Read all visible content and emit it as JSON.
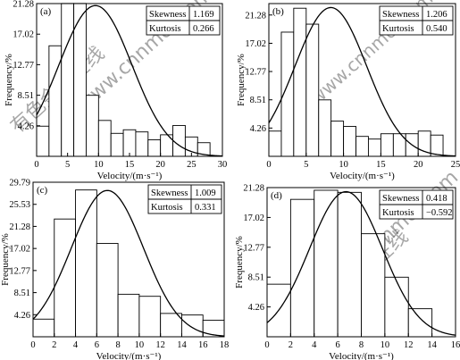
{
  "watermark": {
    "cn": "有色金属在线",
    "url": "www.cnnmol.com",
    "color": "#c8c8c8"
  },
  "chart_data": [
    {
      "type": "bar",
      "panel_label": "(a)",
      "xlabel": "Velocity/(m·s⁻¹)",
      "ylabel": "Frequency/%",
      "xlim": [
        0,
        30
      ],
      "ylim": [
        0,
        21.28
      ],
      "xticks": [
        0,
        5,
        10,
        15,
        20,
        25,
        30
      ],
      "yticks": [
        "4.26",
        "8.51",
        "12.77",
        "17.02",
        "21.28"
      ],
      "bin_edges": [
        0,
        2,
        4,
        6,
        8,
        10,
        12,
        14,
        16,
        18,
        20,
        22,
        24,
        26,
        28
      ],
      "values": [
        4.2,
        15.4,
        21.3,
        21.3,
        8.5,
        5.0,
        3.2,
        3.7,
        3.4,
        2.3,
        3.0,
        4.3,
        2.7,
        1.9
      ],
      "curve": {
        "mean": 9.5,
        "sd": 5.9,
        "peak": 21.0
      },
      "stats": [
        {
          "name": "Skewness",
          "value": "1.169"
        },
        {
          "name": "Kurtosis",
          "value": "0.266"
        }
      ]
    },
    {
      "type": "bar",
      "panel_label": "(b)",
      "xlabel": "Velocity/(m·s⁻¹)",
      "ylabel": "Frequency/%",
      "xlim": [
        0,
        25
      ],
      "ylim": [
        0,
        23.0
      ],
      "xticks": [
        0,
        5,
        10,
        15,
        20,
        25
      ],
      "yticks": [
        "4.26",
        "8.51",
        "12.77",
        "17.02",
        "21.28"
      ],
      "bin_edges": [
        0,
        1.67,
        3.33,
        5,
        6.67,
        8.33,
        10,
        11.67,
        13.33,
        15,
        16.67,
        18.33,
        20,
        21.67,
        23.33
      ],
      "values": [
        3.8,
        18.7,
        22.3,
        19.9,
        8.5,
        5.3,
        4.5,
        3.0,
        2.6,
        3.4,
        3.4,
        3.4,
        3.8,
        3.2
      ],
      "curve": {
        "mean": 8.3,
        "sd": 4.8,
        "peak": 22.4
      },
      "stats": [
        {
          "name": "Skewness",
          "value": "1.206"
        },
        {
          "name": "Kurtosis",
          "value": "0.540"
        }
      ]
    },
    {
      "type": "bar",
      "panel_label": "(c)",
      "xlabel": "Velocity/(m·s⁻¹)",
      "ylabel": "Frequency/%",
      "xlim": [
        0,
        18
      ],
      "ylim": [
        0,
        29.79
      ],
      "xticks": [
        0,
        2,
        4,
        6,
        8,
        10,
        12,
        14,
        16,
        18
      ],
      "yticks": [
        "4.26",
        "8.51",
        "12.77",
        "17.02",
        "21.28",
        "25.53",
        "29.79"
      ],
      "bin_edges": [
        0,
        2,
        4,
        6,
        8,
        10,
        12,
        14,
        16,
        18
      ],
      "values": [
        3.4,
        22.7,
        28.3,
        18.0,
        8.2,
        7.8,
        4.5,
        4.2,
        3.2
      ],
      "curve": {
        "mean": 7.0,
        "sd": 3.4,
        "peak": 28.2
      },
      "stats": [
        {
          "name": "Skewness",
          "value": "1.009"
        },
        {
          "name": "Kurtosis",
          "value": "0.331"
        }
      ]
    },
    {
      "type": "bar",
      "panel_label": "(d)",
      "xlabel": "Velocity/(m·s⁻¹)",
      "ylabel": "Frequency/%",
      "xlim": [
        0,
        16
      ],
      "ylim": [
        0,
        21.28
      ],
      "xticks": [
        0,
        2,
        4,
        6,
        8,
        10,
        12,
        14,
        16
      ],
      "yticks": [
        "4.26",
        "8.51",
        "12.77",
        "17.02",
        "21.28"
      ],
      "bin_edges": [
        0,
        2,
        4,
        6,
        8,
        10,
        12,
        14
      ],
      "values": [
        7.5,
        19.6,
        20.9,
        20.6,
        14.7,
        8.5,
        4.0
      ],
      "curve": {
        "mean": 6.7,
        "sd": 3.1,
        "peak": 20.7
      },
      "stats": [
        {
          "name": "Skewness",
          "value": "0.418"
        },
        {
          "name": "Kurtosis",
          "value": "−0.592"
        }
      ]
    }
  ]
}
